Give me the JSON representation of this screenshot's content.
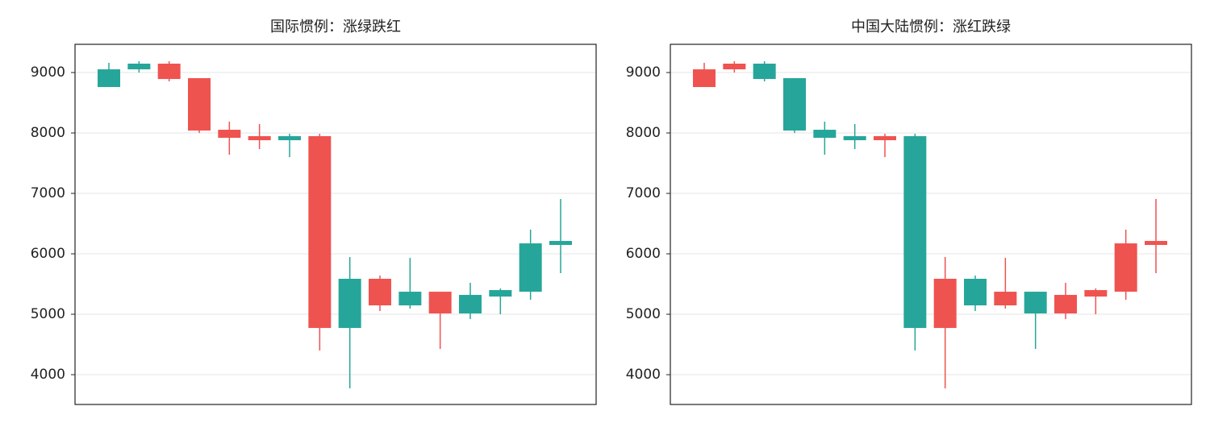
{
  "chart_data": [
    {
      "type": "candlestick",
      "title": "国际惯例：涨绿跌红",
      "up_color": "#26a69a",
      "down_color": "#ef5350",
      "open": [
        8760,
        9053,
        9147,
        8907,
        8053,
        7947,
        7880,
        7947,
        4773,
        5587,
        5147,
        5373,
        5013,
        5293,
        5373,
        6147
      ],
      "high": [
        9160,
        9187,
        9187,
        8907,
        8187,
        8147,
        7987,
        7987,
        5947,
        5640,
        5933,
        5373,
        5520,
        5427,
        6400,
        6907
      ],
      "low": [
        8760,
        9000,
        8853,
        8000,
        7640,
        7733,
        7600,
        4400,
        3773,
        5053,
        5093,
        4427,
        4920,
        5000,
        5240,
        5680
      ],
      "close": [
        9053,
        9147,
        8893,
        8040,
        7920,
        7880,
        7947,
        4773,
        5587,
        5147,
        5373,
        5013,
        5320,
        5400,
        6173,
        6213
      ],
      "ylim": [
        3507,
        9467
      ],
      "yticks": [
        4000,
        5000,
        6000,
        7000,
        8000,
        9000
      ],
      "grid": true
    },
    {
      "type": "candlestick",
      "title": "中国大陆惯例：涨红跌绿",
      "up_color": "#ef5350",
      "down_color": "#26a69a",
      "open": [
        8760,
        9053,
        9147,
        8907,
        8053,
        7947,
        7880,
        7947,
        4773,
        5587,
        5147,
        5373,
        5013,
        5293,
        5373,
        6147
      ],
      "high": [
        9160,
        9187,
        9187,
        8907,
        8187,
        8147,
        7987,
        7987,
        5947,
        5640,
        5933,
        5373,
        5520,
        5427,
        6400,
        6907
      ],
      "low": [
        8760,
        9000,
        8853,
        8000,
        7640,
        7733,
        7600,
        4400,
        3773,
        5053,
        5093,
        4427,
        4920,
        5000,
        5240,
        5680
      ],
      "close": [
        9053,
        9147,
        8893,
        8040,
        7920,
        7880,
        7947,
        4773,
        5587,
        5147,
        5373,
        5013,
        5320,
        5400,
        6173,
        6213
      ],
      "ylim": [
        3507,
        9467
      ],
      "yticks": [
        4000,
        5000,
        6000,
        7000,
        8000,
        9000
      ],
      "grid": true
    }
  ]
}
